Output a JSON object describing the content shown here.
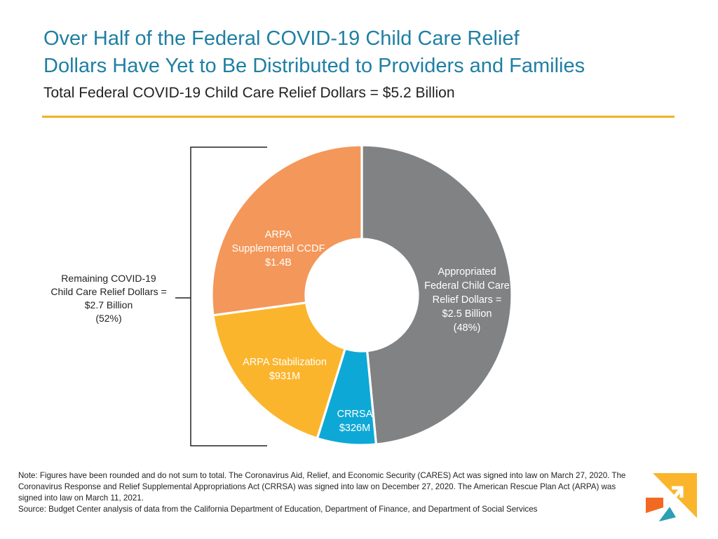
{
  "title_line1": "Over Half of the Federal COVID-19 Child Care Relief",
  "title_line2": "Dollars Have Yet to Be Distributed to Providers and Families",
  "subtitle": "Total Federal COVID-19 Child Care Relief Dollars = $5.2 Billion",
  "bracket_label": [
    "Remaining COVID-19",
    "Child Care Relief Dollars =",
    "$2.7 Billion",
    "(52%)"
  ],
  "chart_data": {
    "type": "pie",
    "style": "donut",
    "start": "top",
    "direction": "clockwise",
    "slices": [
      {
        "name": "Appropriated Federal Child Care Relief Dollars",
        "value": 2.5,
        "unit": "billion",
        "percent": 48,
        "label_lines": [
          "Appropriated",
          "Federal Child Care",
          "Relief Dollars =",
          "$2.5 Billion",
          "(48%)"
        ],
        "color": "#818284",
        "text_color": "#ffffff"
      },
      {
        "name": "CRRSA",
        "value": 0.326,
        "unit": "billion",
        "label_lines": [
          "CRRSA",
          "$326M"
        ],
        "color": "#0ea8d6",
        "text_color": "#ffffff"
      },
      {
        "name": "ARPA Stabilization",
        "value": 0.931,
        "unit": "billion",
        "label_lines": [
          "ARPA Stabilization",
          "$931M"
        ],
        "color": "#fbb52c",
        "text_color": "#ffffff"
      },
      {
        "name": "ARPA Supplemental CCDF",
        "value": 1.4,
        "unit": "billion",
        "label_lines": [
          "ARPA",
          "Supplemental CCDF",
          "$1.4B"
        ],
        "color": "#f4975a",
        "text_color": "#ffffff"
      }
    ]
  },
  "notes": [
    "Note: Figures have been rounded and do not sum to total. The Coronavirus Aid, Relief, and Economic Security (CARES) Act was signed into law on March 27, 2020. The Coronavirus Response and Relief Supplemental Appropriations Act (CRRSA) was signed into law on December 27, 2020. The American Rescue Plan Act (ARPA) was signed into law on March 11, 2021.",
    "Source: Budget Center analysis of data from the California Department of Education, Department of Finance, and Department of Social Services"
  ],
  "colors": {
    "title": "#1f7fa3",
    "rule": "#f2b221",
    "logo_orange": "#f26a21",
    "logo_yellow": "#fbb52c",
    "logo_teal": "#2a9fb5"
  },
  "logo_icon": "arrow-logo-icon"
}
